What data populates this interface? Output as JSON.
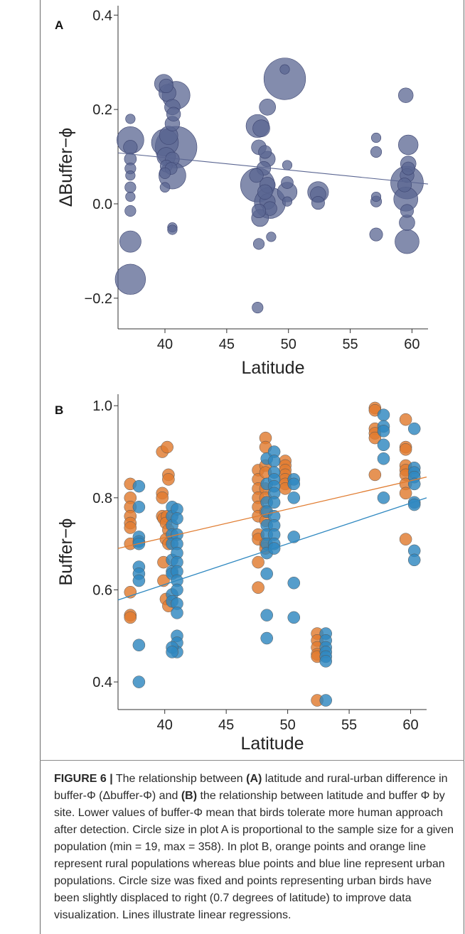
{
  "figure": {
    "caption_label": "FIGURE 6 |",
    "caption_parts": [
      {
        "t": "FIGURE 6 |",
        "b": true
      },
      {
        "t": " The relationship between ",
        "b": false
      },
      {
        "t": "(A)",
        "b": true
      },
      {
        "t": " latitude and rural-urban difference in buffer-Φ (Δbuffer-Φ) and ",
        "b": false
      },
      {
        "t": "(B)",
        "b": true
      },
      {
        "t": " the relationship between latitude and buffer Φ by site. Lower values of buffer-Φ mean that birds tolerate more human approach after detection. Circle size in plot A is proportional to the sample size for a given population (min = 19, max = 358). In plot B, orange points and orange line represent rural populations whereas blue points and blue line represent urban populations. Circle size was fixed and points representing urban birds have been slightly displaced to right (0.7 degrees of latitude) to improve data visualization. Lines illustrate linear regressions.",
        "b": false
      }
    ]
  },
  "chart_data": [
    {
      "panel": "A",
      "type": "scatter",
      "xlabel": "Latitude",
      "ylabel": "ΔBuffer−ϕ",
      "xlim": [
        36.2,
        61.3
      ],
      "ylim": [
        -0.265,
        0.42
      ],
      "xticks": [
        40,
        45,
        50,
        55,
        60
      ],
      "yticks": [
        -0.2,
        0.0,
        0.2,
        0.4
      ],
      "ytick_labels": [
        "−0.2",
        "0.0",
        "0.2",
        "0.4"
      ],
      "point_color": "#5a6591",
      "line_color": "#5a6591",
      "regression": {
        "x": [
          36.2,
          61.3
        ],
        "y": [
          0.108,
          0.042
        ]
      },
      "points": [
        {
          "x": 37.2,
          "y": 0.18,
          "n": 19
        },
        {
          "x": 37.2,
          "y": 0.135,
          "n": 150
        },
        {
          "x": 37.2,
          "y": 0.12,
          "n": 40
        },
        {
          "x": 37.2,
          "y": 0.095,
          "n": 30
        },
        {
          "x": 37.2,
          "y": 0.075,
          "n": 25
        },
        {
          "x": 37.2,
          "y": 0.06,
          "n": 19
        },
        {
          "x": 37.2,
          "y": 0.035,
          "n": 25
        },
        {
          "x": 37.2,
          "y": 0.015,
          "n": 19
        },
        {
          "x": 37.2,
          "y": -0.015,
          "n": 25
        },
        {
          "x": 37.2,
          "y": -0.08,
          "n": 95
        },
        {
          "x": 37.2,
          "y": -0.16,
          "n": 190
        },
        {
          "x": 39.9,
          "y": 0.255,
          "n": 70
        },
        {
          "x": 40.1,
          "y": 0.25,
          "n": 40
        },
        {
          "x": 40.2,
          "y": 0.235,
          "n": 60
        },
        {
          "x": 40.9,
          "y": 0.23,
          "n": 160
        },
        {
          "x": 40.6,
          "y": 0.205,
          "n": 50
        },
        {
          "x": 40.7,
          "y": 0.19,
          "n": 40
        },
        {
          "x": 40.6,
          "y": 0.17,
          "n": 45
        },
        {
          "x": 40.3,
          "y": 0.145,
          "n": 70
        },
        {
          "x": 40.9,
          "y": 0.12,
          "n": 358
        },
        {
          "x": 40.0,
          "y": 0.13,
          "n": 150
        },
        {
          "x": 40.1,
          "y": 0.1,
          "n": 70
        },
        {
          "x": 40.6,
          "y": 0.095,
          "n": 40
        },
        {
          "x": 40.1,
          "y": 0.08,
          "n": 30
        },
        {
          "x": 40.5,
          "y": 0.075,
          "n": 30
        },
        {
          "x": 40.0,
          "y": 0.065,
          "n": 25
        },
        {
          "x": 40.6,
          "y": 0.06,
          "n": 150
        },
        {
          "x": 40.0,
          "y": 0.035,
          "n": 20
        },
        {
          "x": 40.6,
          "y": -0.05,
          "n": 19
        },
        {
          "x": 40.6,
          "y": -0.055,
          "n": 19
        },
        {
          "x": 47.5,
          "y": 0.165,
          "n": 110
        },
        {
          "x": 47.8,
          "y": 0.16,
          "n": 60
        },
        {
          "x": 48.3,
          "y": 0.205,
          "n": 55
        },
        {
          "x": 47.6,
          "y": 0.12,
          "n": 45
        },
        {
          "x": 48.1,
          "y": 0.11,
          "n": 35
        },
        {
          "x": 48.3,
          "y": 0.095,
          "n": 50
        },
        {
          "x": 48.0,
          "y": 0.075,
          "n": 40
        },
        {
          "x": 47.4,
          "y": 0.06,
          "n": 40
        },
        {
          "x": 47.5,
          "y": 0.04,
          "n": 240
        },
        {
          "x": 48.3,
          "y": 0.04,
          "n": 50
        },
        {
          "x": 48.1,
          "y": 0.025,
          "n": 45
        },
        {
          "x": 48.3,
          "y": 0.005,
          "n": 50
        },
        {
          "x": 48.5,
          "y": 0.002,
          "n": 200
        },
        {
          "x": 48.5,
          "y": -0.01,
          "n": 40
        },
        {
          "x": 47.6,
          "y": -0.015,
          "n": 40
        },
        {
          "x": 47.7,
          "y": -0.03,
          "n": 60
        },
        {
          "x": 48.6,
          "y": -0.07,
          "n": 19
        },
        {
          "x": 47.6,
          "y": -0.085,
          "n": 25
        },
        {
          "x": 47.5,
          "y": -0.22,
          "n": 25
        },
        {
          "x": 49.7,
          "y": 0.265,
          "n": 358
        },
        {
          "x": 49.7,
          "y": 0.285,
          "n": 19
        },
        {
          "x": 49.9,
          "y": 0.082,
          "n": 19
        },
        {
          "x": 49.9,
          "y": 0.045,
          "n": 30
        },
        {
          "x": 49.9,
          "y": 0.025,
          "n": 80
        },
        {
          "x": 49.9,
          "y": 0.005,
          "n": 19
        },
        {
          "x": 52.4,
          "y": 0.025,
          "n": 90
        },
        {
          "x": 52.4,
          "y": 0.02,
          "n": 50
        },
        {
          "x": 52.4,
          "y": 0.002,
          "n": 35
        },
        {
          "x": 57.1,
          "y": 0.14,
          "n": 19
        },
        {
          "x": 57.1,
          "y": 0.11,
          "n": 25
        },
        {
          "x": 57.1,
          "y": 0.015,
          "n": 19
        },
        {
          "x": 57.1,
          "y": 0.005,
          "n": 25
        },
        {
          "x": 57.1,
          "y": -0.065,
          "n": 35
        },
        {
          "x": 59.5,
          "y": 0.23,
          "n": 45
        },
        {
          "x": 59.7,
          "y": 0.125,
          "n": 80
        },
        {
          "x": 59.7,
          "y": 0.085,
          "n": 50
        },
        {
          "x": 59.7,
          "y": 0.075,
          "n": 35
        },
        {
          "x": 59.6,
          "y": 0.06,
          "n": 40
        },
        {
          "x": 59.6,
          "y": 0.045,
          "n": 220
        },
        {
          "x": 59.4,
          "y": 0.04,
          "n": 40
        },
        {
          "x": 59.5,
          "y": 0.01,
          "n": 120
        },
        {
          "x": 59.6,
          "y": -0.015,
          "n": 35
        },
        {
          "x": 59.6,
          "y": -0.04,
          "n": 50
        },
        {
          "x": 59.6,
          "y": -0.08,
          "n": 120
        }
      ]
    },
    {
      "panel": "B",
      "type": "scatter",
      "xlabel": "Latitude",
      "ylabel": "Buffer−ϕ",
      "xlim": [
        36.2,
        61.3
      ],
      "ylim": [
        0.34,
        1.025
      ],
      "xticks": [
        40,
        45,
        50,
        55,
        60
      ],
      "yticks": [
        0.4,
        0.6,
        0.8,
        1.0
      ],
      "ytick_labels": [
        "0.4",
        "0.6",
        "0.8",
        "1.0"
      ],
      "series": [
        {
          "color": "#e07b2f",
          "regression": {
            "x": [
              36.2,
              61.3
            ],
            "y": [
              0.69,
              0.845
            ]
          },
          "points": [
            [
              37.2,
              0.83
            ],
            [
              37.2,
              0.8
            ],
            [
              37.2,
              0.78
            ],
            [
              37.2,
              0.76
            ],
            [
              37.2,
              0.745
            ],
            [
              37.2,
              0.735
            ],
            [
              37.2,
              0.7
            ],
            [
              37.2,
              0.595
            ],
            [
              37.2,
              0.545
            ],
            [
              37.2,
              0.54
            ],
            [
              39.8,
              0.9
            ],
            [
              40.2,
              0.91
            ],
            [
              39.8,
              0.81
            ],
            [
              39.8,
              0.8
            ],
            [
              39.8,
              0.76
            ],
            [
              39.9,
              0.755
            ],
            [
              40.3,
              0.85
            ],
            [
              40.3,
              0.84
            ],
            [
              40.2,
              0.76
            ],
            [
              40.1,
              0.745
            ],
            [
              40.3,
              0.73
            ],
            [
              40.1,
              0.71
            ],
            [
              40.3,
              0.7
            ],
            [
              39.9,
              0.66
            ],
            [
              39.9,
              0.62
            ],
            [
              40.1,
              0.58
            ],
            [
              40.3,
              0.565
            ],
            [
              47.6,
              0.86
            ],
            [
              47.6,
              0.84
            ],
            [
              47.6,
              0.82
            ],
            [
              47.6,
              0.8
            ],
            [
              47.6,
              0.78
            ],
            [
              47.6,
              0.76
            ],
            [
              47.6,
              0.72
            ],
            [
              47.6,
              0.71
            ],
            [
              47.6,
              0.66
            ],
            [
              47.6,
              0.605
            ],
            [
              48.2,
              0.93
            ],
            [
              48.2,
              0.91
            ],
            [
              48.2,
              0.87
            ],
            [
              48.2,
              0.855
            ],
            [
              48.2,
              0.82
            ],
            [
              48.2,
              0.8
            ],
            [
              48.2,
              0.77
            ],
            [
              48.2,
              0.75
            ],
            [
              48.2,
              0.7
            ],
            [
              48.2,
              0.69
            ],
            [
              49.8,
              0.88
            ],
            [
              49.8,
              0.87
            ],
            [
              49.8,
              0.86
            ],
            [
              49.8,
              0.85
            ],
            [
              49.8,
              0.84
            ],
            [
              49.8,
              0.83
            ],
            [
              49.8,
              0.82
            ],
            [
              52.4,
              0.505
            ],
            [
              52.4,
              0.49
            ],
            [
              52.4,
              0.475
            ],
            [
              52.4,
              0.46
            ],
            [
              52.4,
              0.455
            ],
            [
              52.4,
              0.36
            ],
            [
              57.1,
              0.995
            ],
            [
              57.1,
              0.99
            ],
            [
              57.1,
              0.95
            ],
            [
              57.1,
              0.94
            ],
            [
              57.1,
              0.93
            ],
            [
              57.1,
              0.85
            ],
            [
              59.6,
              0.97
            ],
            [
              59.6,
              0.91
            ],
            [
              59.6,
              0.905
            ],
            [
              59.6,
              0.87
            ],
            [
              59.6,
              0.86
            ],
            [
              59.6,
              0.85
            ],
            [
              59.6,
              0.83
            ],
            [
              59.6,
              0.81
            ],
            [
              59.6,
              0.71
            ]
          ]
        },
        {
          "color": "#2f88c0",
          "regression": {
            "x": [
              36.2,
              61.3
            ],
            "y": [
              0.578,
              0.8
            ]
          },
          "points": [
            [
              37.9,
              0.825
            ],
            [
              37.9,
              0.78
            ],
            [
              37.9,
              0.715
            ],
            [
              37.9,
              0.705
            ],
            [
              37.9,
              0.7
            ],
            [
              37.9,
              0.65
            ],
            [
              37.9,
              0.635
            ],
            [
              37.9,
              0.62
            ],
            [
              37.9,
              0.48
            ],
            [
              37.9,
              0.4
            ],
            [
              40.6,
              0.78
            ],
            [
              40.6,
              0.76
            ],
            [
              40.6,
              0.74
            ],
            [
              40.6,
              0.72
            ],
            [
              40.6,
              0.7
            ],
            [
              40.6,
              0.665
            ],
            [
              40.6,
              0.64
            ],
            [
              40.6,
              0.635
            ],
            [
              40.6,
              0.59
            ],
            [
              40.6,
              0.575
            ],
            [
              41.0,
              0.775
            ],
            [
              41.0,
              0.755
            ],
            [
              41.0,
              0.72
            ],
            [
              41.0,
              0.7
            ],
            [
              41.0,
              0.68
            ],
            [
              41.0,
              0.66
            ],
            [
              41.0,
              0.64
            ],
            [
              41.0,
              0.62
            ],
            [
              41.0,
              0.6
            ],
            [
              41.0,
              0.57
            ],
            [
              41.0,
              0.55
            ],
            [
              41.0,
              0.5
            ],
            [
              41.0,
              0.485
            ],
            [
              41.0,
              0.465
            ],
            [
              40.6,
              0.475
            ],
            [
              40.6,
              0.465
            ],
            [
              48.3,
              0.885
            ],
            [
              48.3,
              0.83
            ],
            [
              48.3,
              0.79
            ],
            [
              48.3,
              0.77
            ],
            [
              48.3,
              0.74
            ],
            [
              48.3,
              0.72
            ],
            [
              48.3,
              0.7
            ],
            [
              48.3,
              0.68
            ],
            [
              48.3,
              0.635
            ],
            [
              48.3,
              0.545
            ],
            [
              48.3,
              0.495
            ],
            [
              48.9,
              0.9
            ],
            [
              48.9,
              0.88
            ],
            [
              48.9,
              0.855
            ],
            [
              48.9,
              0.84
            ],
            [
              48.9,
              0.825
            ],
            [
              48.9,
              0.81
            ],
            [
              48.9,
              0.79
            ],
            [
              48.9,
              0.76
            ],
            [
              48.9,
              0.74
            ],
            [
              48.9,
              0.72
            ],
            [
              48.9,
              0.7
            ],
            [
              48.9,
              0.69
            ],
            [
              50.5,
              0.84
            ],
            [
              50.5,
              0.83
            ],
            [
              50.5,
              0.8
            ],
            [
              50.5,
              0.715
            ],
            [
              50.5,
              0.615
            ],
            [
              50.5,
              0.54
            ],
            [
              53.1,
              0.505
            ],
            [
              53.1,
              0.49
            ],
            [
              53.1,
              0.475
            ],
            [
              53.1,
              0.465
            ],
            [
              53.1,
              0.455
            ],
            [
              53.1,
              0.445
            ],
            [
              53.1,
              0.36
            ],
            [
              57.8,
              0.98
            ],
            [
              57.8,
              0.955
            ],
            [
              57.8,
              0.945
            ],
            [
              57.8,
              0.915
            ],
            [
              57.8,
              0.885
            ],
            [
              57.8,
              0.8
            ],
            [
              60.3,
              0.95
            ],
            [
              60.3,
              0.865
            ],
            [
              60.3,
              0.855
            ],
            [
              60.3,
              0.845
            ],
            [
              60.3,
              0.83
            ],
            [
              60.3,
              0.79
            ],
            [
              60.3,
              0.785
            ],
            [
              60.3,
              0.685
            ],
            [
              60.3,
              0.665
            ]
          ]
        }
      ]
    }
  ]
}
